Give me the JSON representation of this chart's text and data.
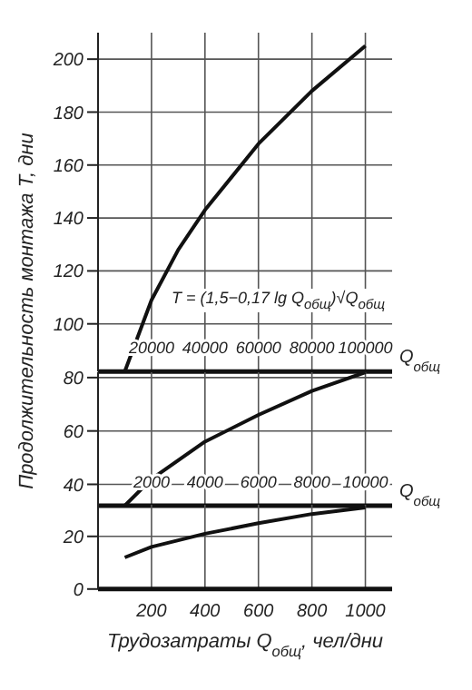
{
  "chart_data": [
    {
      "type": "line",
      "ylabel": "Продолжительность монтажа T, дни",
      "xlabel": "Q$_{общ}$",
      "x": [
        10000,
        20000,
        30000,
        40000,
        60000,
        80000,
        100000
      ],
      "values": [
        82,
        109,
        128,
        143,
        168,
        188,
        205
      ],
      "color": "#111111",
      "xlim": [
        0,
        110000
      ],
      "xticks": [
        20000,
        40000,
        60000,
        80000,
        100000
      ],
      "ylim": [
        82,
        210
      ],
      "yticks": [
        100,
        120,
        140,
        160,
        180,
        200
      ],
      "grid": true,
      "marker": "none",
      "line_style": "solid",
      "annotations": [
        "T = (1,5−0,17 lg Q$_{общ}$)√Q$_{общ}$"
      ]
    },
    {
      "type": "line",
      "xlabel": "Q$_{общ}$",
      "x": [
        1000,
        2000,
        4000,
        6000,
        8000,
        10000
      ],
      "values": [
        32,
        42,
        56,
        66,
        75,
        82
      ],
      "color": "#111111",
      "xlim": [
        0,
        11000
      ],
      "xticks": [
        2000,
        4000,
        6000,
        8000,
        10000
      ],
      "ylim": [
        32,
        82
      ],
      "yticks": [
        40,
        60,
        80
      ],
      "grid": true,
      "marker": "none",
      "line_style": "solid"
    },
    {
      "type": "line",
      "xlabel": "Трудозатраты Q$_{общ}$, чел/дни",
      "x": [
        100,
        200,
        400,
        600,
        800,
        1000
      ],
      "values": [
        12,
        16,
        21,
        25,
        28.5,
        31
      ],
      "color": "#111111",
      "xlim": [
        0,
        1100
      ],
      "xticks": [
        200,
        400,
        600,
        800,
        1000
      ],
      "ylim": [
        0,
        32
      ],
      "yticks": [
        0,
        20
      ],
      "grid": true,
      "marker": "none",
      "line_style": "solid"
    }
  ]
}
